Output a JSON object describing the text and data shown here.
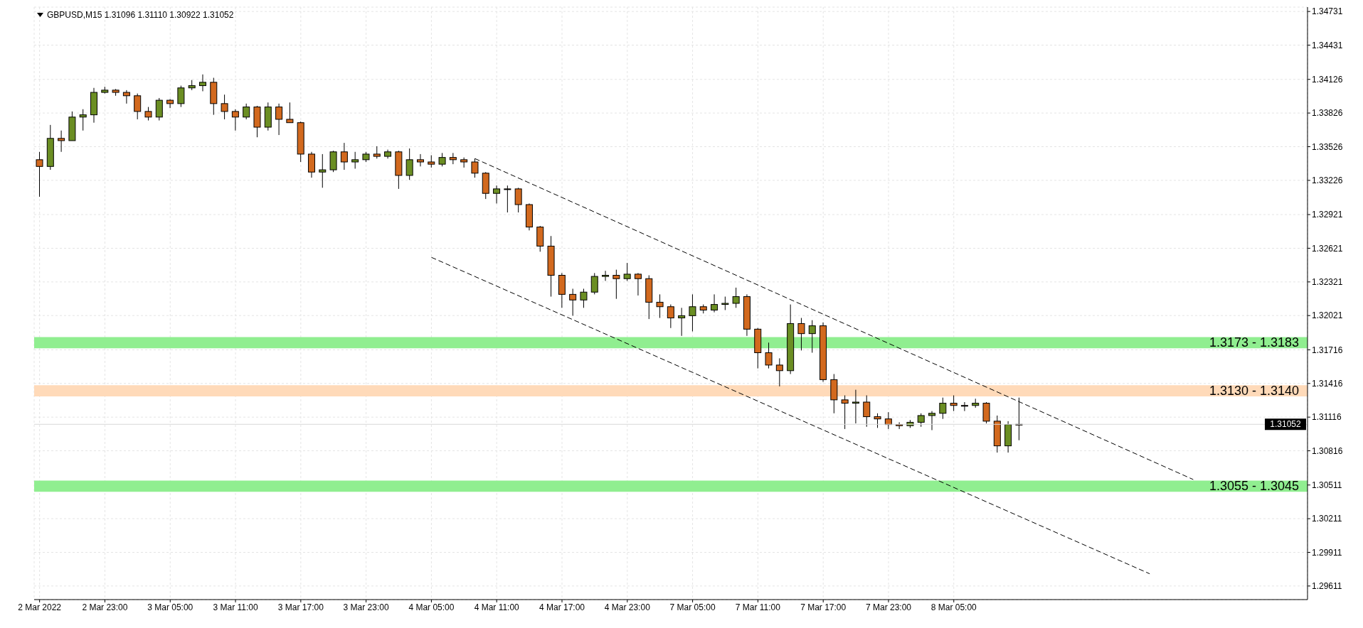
{
  "chart_data": {
    "type": "candlestick",
    "title": "GBPUSD,M15  1.31096 1.31110 1.30922 1.31052",
    "categories": [
      "2 Mar 2022",
      null,
      null,
      null,
      null,
      null,
      "2 Mar 23:00",
      null,
      null,
      null,
      null,
      null,
      "3 Mar 05:00",
      null,
      null,
      null,
      null,
      null,
      "3 Mar 11:00",
      null,
      null,
      null,
      null,
      null,
      "3 Mar 17:00",
      null,
      null,
      null,
      null,
      null,
      "3 Mar 23:00",
      null,
      null,
      null,
      null,
      null,
      "4 Mar 05:00",
      null,
      null,
      null,
      null,
      null,
      "4 Mar 11:00",
      null,
      null,
      null,
      null,
      null,
      "4 Mar 17:00",
      null,
      null,
      null,
      null,
      null,
      "4 Mar 23:00",
      null,
      null,
      null,
      null,
      null,
      "7 Mar 05:00",
      null,
      null,
      null,
      null,
      null,
      "7 Mar 11:00",
      null,
      null,
      null,
      null,
      null,
      "7 Mar 17:00",
      null,
      null,
      null,
      null,
      null,
      "7 Mar 23:00",
      null,
      null,
      null,
      null,
      null,
      "8 Mar 05:00",
      null,
      null,
      null,
      null,
      null,
      null,
      null,
      null,
      null,
      null,
      null,
      null,
      null,
      null,
      null,
      null,
      null,
      null,
      null,
      null,
      null,
      null,
      null,
      null,
      null,
      null,
      null,
      null,
      null,
      null,
      null,
      null
    ],
    "ohlc": [
      [
        1.3341,
        1.3348,
        1.3308,
        1.3335
      ],
      [
        1.3335,
        1.3372,
        1.3332,
        1.336
      ],
      [
        1.336,
        1.3367,
        1.3348,
        1.3358
      ],
      [
        1.3358,
        1.3384,
        1.3358,
        1.3379
      ],
      [
        1.3379,
        1.3386,
        1.3367,
        1.3381
      ],
      [
        1.3381,
        1.3405,
        1.3374,
        1.3401
      ],
      [
        1.3401,
        1.3406,
        1.34,
        1.3403
      ],
      [
        1.3403,
        1.3404,
        1.3398,
        1.3401
      ],
      [
        1.3401,
        1.3403,
        1.3391,
        1.3398
      ],
      [
        1.3398,
        1.34,
        1.3377,
        1.3384
      ],
      [
        1.3384,
        1.3388,
        1.3376,
        1.3379
      ],
      [
        1.3379,
        1.3396,
        1.3376,
        1.3394
      ],
      [
        1.3394,
        1.3395,
        1.3387,
        1.3391
      ],
      [
        1.3391,
        1.3407,
        1.3388,
        1.3405
      ],
      [
        1.3405,
        1.3412,
        1.3403,
        1.3407
      ],
      [
        1.3407,
        1.3417,
        1.3402,
        1.341
      ],
      [
        1.341,
        1.3414,
        1.3381,
        1.3391
      ],
      [
        1.3391,
        1.3399,
        1.3377,
        1.3384
      ],
      [
        1.3384,
        1.3386,
        1.3367,
        1.3379
      ],
      [
        1.3379,
        1.3391,
        1.3377,
        1.3388
      ],
      [
        1.3388,
        1.3389,
        1.3361,
        1.337
      ],
      [
        1.337,
        1.3392,
        1.3367,
        1.3388
      ],
      [
        1.3388,
        1.3391,
        1.3363,
        1.3377
      ],
      [
        1.3377,
        1.3392,
        1.3374,
        1.3374
      ],
      [
        1.3374,
        1.3375,
        1.3339,
        1.3346
      ],
      [
        1.3346,
        1.3348,
        1.3325,
        1.333
      ],
      [
        1.333,
        1.3346,
        1.3316,
        1.3332
      ],
      [
        1.3332,
        1.3349,
        1.333,
        1.3348
      ],
      [
        1.3348,
        1.3356,
        1.3332,
        1.3339
      ],
      [
        1.3339,
        1.3348,
        1.3333,
        1.3341
      ],
      [
        1.3341,
        1.3348,
        1.3339,
        1.3346
      ],
      [
        1.3346,
        1.3353,
        1.3342,
        1.3344
      ],
      [
        1.3344,
        1.335,
        1.3342,
        1.3348
      ],
      [
        1.3348,
        1.3349,
        1.3315,
        1.3327
      ],
      [
        1.3327,
        1.3351,
        1.3323,
        1.3341
      ],
      [
        1.3341,
        1.3346,
        1.3335,
        1.3339
      ],
      [
        1.3339,
        1.3345,
        1.3334,
        1.3337
      ],
      [
        1.3337,
        1.3347,
        1.3335,
        1.3343
      ],
      [
        1.3343,
        1.3347,
        1.3337,
        1.3341
      ],
      [
        1.3341,
        1.3343,
        1.3334,
        1.3339
      ],
      [
        1.3339,
        1.3342,
        1.3325,
        1.3329
      ],
      [
        1.3329,
        1.333,
        1.3306,
        1.3311
      ],
      [
        1.3311,
        1.3318,
        1.3302,
        1.3315
      ],
      [
        1.3315,
        1.3318,
        1.3294,
        1.3315
      ],
      [
        1.3315,
        1.3316,
        1.3294,
        1.3301
      ],
      [
        1.3301,
        1.3302,
        1.3278,
        1.3281
      ],
      [
        1.3281,
        1.3282,
        1.3259,
        1.3264
      ],
      [
        1.3264,
        1.3273,
        1.3219,
        1.3238
      ],
      [
        1.3238,
        1.324,
        1.3209,
        1.3221
      ],
      [
        1.3221,
        1.3226,
        1.3202,
        1.3216
      ],
      [
        1.3216,
        1.3226,
        1.3209,
        1.3223
      ],
      [
        1.3223,
        1.324,
        1.3221,
        1.3237
      ],
      [
        1.3237,
        1.3242,
        1.3233,
        1.3238
      ],
      [
        1.3238,
        1.3243,
        1.3217,
        1.3235
      ],
      [
        1.3235,
        1.3249,
        1.3233,
        1.3239
      ],
      [
        1.3239,
        1.324,
        1.322,
        1.3235
      ],
      [
        1.3235,
        1.3238,
        1.3199,
        1.3214
      ],
      [
        1.3214,
        1.3221,
        1.32,
        1.321
      ],
      [
        1.321,
        1.3212,
        1.3191,
        1.32
      ],
      [
        1.32,
        1.3209,
        1.3184,
        1.3202
      ],
      [
        1.3202,
        1.3221,
        1.3188,
        1.321
      ],
      [
        1.321,
        1.3212,
        1.3204,
        1.3207
      ],
      [
        1.3207,
        1.3221,
        1.3205,
        1.3212
      ],
      [
        1.3212,
        1.3219,
        1.3207,
        1.3213
      ],
      [
        1.3213,
        1.3227,
        1.3209,
        1.3219
      ],
      [
        1.3219,
        1.3221,
        1.3184,
        1.319
      ],
      [
        1.319,
        1.3191,
        1.3155,
        1.3169
      ],
      [
        1.3169,
        1.3178,
        1.3155,
        1.3158
      ],
      [
        1.3158,
        1.3164,
        1.3139,
        1.3153
      ],
      [
        1.3153,
        1.3212,
        1.315,
        1.3195
      ],
      [
        1.3195,
        1.32,
        1.3171,
        1.3186
      ],
      [
        1.3186,
        1.3198,
        1.3169,
        1.3193
      ],
      [
        1.3193,
        1.3196,
        1.3143,
        1.3145
      ],
      [
        1.3145,
        1.315,
        1.3115,
        1.3127
      ],
      [
        1.3127,
        1.3131,
        1.3101,
        1.3124
      ],
      [
        1.3124,
        1.3136,
        1.3106,
        1.3125
      ],
      [
        1.3125,
        1.3131,
        1.3103,
        1.3112
      ],
      [
        1.3112,
        1.3115,
        1.3102,
        1.311
      ],
      [
        1.311,
        1.3116,
        1.3101,
        1.3105
      ],
      [
        1.3105,
        1.3107,
        1.3101,
        1.3104
      ],
      [
        1.3104,
        1.3109,
        1.3102,
        1.3107
      ],
      [
        1.3107,
        1.3115,
        1.3103,
        1.3113
      ],
      [
        1.3113,
        1.3117,
        1.31,
        1.3115
      ],
      [
        1.3115,
        1.3129,
        1.311,
        1.3124
      ],
      [
        1.3124,
        1.3131,
        1.3117,
        1.3122
      ],
      [
        1.3122,
        1.3125,
        1.3117,
        1.3122
      ],
      [
        1.3122,
        1.3128,
        1.312,
        1.3124
      ],
      [
        1.3124,
        1.3125,
        1.3106,
        1.3108
      ],
      [
        1.3108,
        1.3113,
        1.308,
        1.3086
      ],
      [
        1.3086,
        1.3108,
        1.308,
        1.3105
      ],
      [
        1.3105,
        1.3129,
        1.3091,
        1.31052
      ],
      null,
      null,
      null,
      null,
      null,
      null,
      null,
      null,
      null,
      null,
      null,
      null,
      null,
      null,
      null,
      null,
      null,
      null,
      null,
      null,
      null,
      null,
      null,
      null,
      null,
      null
    ],
    "colors": [
      "#d2691e",
      "#6b8e23",
      "#d2691e",
      "#6b8e23",
      "#6b8e23",
      "#6b8e23",
      "#6b8e23",
      "#d2691e",
      "#d2691e",
      "#d2691e",
      "#d2691e",
      "#6b8e23",
      "#d2691e",
      "#6b8e23",
      "#6b8e23",
      "#6b8e23",
      "#d2691e",
      "#d2691e",
      "#d2691e",
      "#6b8e23",
      "#d2691e",
      "#6b8e23",
      "#d2691e",
      "#d2691e",
      "#d2691e",
      "#d2691e",
      "#6b8e23",
      "#6b8e23",
      "#d2691e",
      "#6b8e23",
      "#6b8e23",
      "#d2691e",
      "#6b8e23",
      "#d2691e",
      "#6b8e23",
      "#d2691e",
      "#d2691e",
      "#6b8e23",
      "#d2691e",
      "#d2691e",
      "#d2691e",
      "#d2691e",
      "#6b8e23",
      "#d2691e",
      "#d2691e",
      "#d2691e",
      "#d2691e",
      "#d2691e",
      "#d2691e",
      "#d2691e",
      "#6b8e23",
      "#6b8e23",
      "#6b8e23",
      "#d2691e",
      "#6b8e23",
      "#d2691e",
      "#d2691e",
      "#d2691e",
      "#d2691e",
      "#6b8e23",
      "#6b8e23",
      "#d2691e",
      "#6b8e23",
      "#6b8e23",
      "#6b8e23",
      "#d2691e",
      "#d2691e",
      "#d2691e",
      "#d2691e",
      "#6b8e23",
      "#d2691e",
      "#6b8e23",
      "#d2691e",
      "#d2691e",
      "#d2691e",
      "#6b8e23",
      "#d2691e",
      "#d2691e",
      "#d2691e",
      "#d2691e",
      "#6b8e23",
      "#6b8e23",
      "#6b8e23",
      "#6b8e23",
      "#d2691e",
      "#d2691e",
      "#6b8e23",
      "#d2691e",
      "#d2691e",
      "#6b8e23",
      "#d2691e",
      null,
      null,
      null,
      null,
      null,
      null,
      null,
      null,
      null,
      null,
      null,
      null,
      null,
      null,
      null,
      null,
      null,
      null,
      null,
      null,
      null,
      null,
      null,
      null,
      null,
      null
    ],
    "series": [
      {
        "type": "line",
        "values": [
          null,
          null,
          null,
          null,
          null,
          null,
          null,
          null,
          null,
          null,
          null,
          null,
          null,
          null,
          null,
          null,
          null,
          null,
          null,
          null,
          null,
          null,
          null,
          null,
          null,
          null,
          null,
          null,
          null,
          null,
          null,
          null,
          null,
          null,
          null,
          null,
          null,
          null,
          null,
          null,
          1.3342,
          null,
          null,
          null,
          null,
          null,
          null,
          null,
          null,
          null,
          null,
          null,
          null,
          null,
          null,
          null,
          null,
          null,
          null,
          null,
          null,
          null,
          null,
          null,
          null,
          null,
          null,
          null,
          null,
          null,
          null,
          null,
          null,
          null,
          null,
          null,
          null,
          null,
          null,
          null,
          null,
          null,
          null,
          null,
          null,
          null,
          null,
          null,
          null,
          null,
          null,
          null,
          null,
          null,
          null,
          null,
          null,
          null,
          null,
          null,
          null,
          null,
          null,
          null,
          null,
          null,
          1.3056,
          null,
          null,
          null,
          null,
          null,
          null,
          null,
          null,
          null,
          null
        ],
        "color": "#000000",
        "line_style": "dashed"
      },
      {
        "type": "line",
        "values": [
          null,
          null,
          null,
          null,
          null,
          null,
          null,
          null,
          null,
          null,
          null,
          null,
          null,
          null,
          null,
          null,
          null,
          null,
          null,
          null,
          null,
          null,
          null,
          null,
          null,
          null,
          null,
          null,
          null,
          null,
          null,
          null,
          null,
          null,
          null,
          null,
          1.3254,
          null,
          null,
          null,
          null,
          null,
          null,
          null,
          null,
          null,
          null,
          null,
          null,
          null,
          null,
          null,
          null,
          null,
          null,
          null,
          null,
          null,
          null,
          null,
          null,
          null,
          null,
          null,
          null,
          null,
          null,
          null,
          null,
          null,
          null,
          null,
          null,
          null,
          null,
          null,
          null,
          null,
          null,
          null,
          null,
          null,
          null,
          null,
          null,
          null,
          null,
          null,
          null,
          null,
          null,
          null,
          null,
          null,
          null,
          null,
          null,
          null,
          null,
          null,
          null,
          null,
          1.2972,
          null,
          null,
          null,
          null,
          null,
          null,
          null,
          null,
          null,
          null,
          null,
          null,
          null,
          null
        ],
        "color": "#000000",
        "line_style": "dashed"
      }
    ],
    "ylim": [
      1.2949,
      1.3477
    ],
    "yticks": [
      1.34731,
      1.34431,
      1.34126,
      1.33826,
      1.33526,
      1.33226,
      1.32921,
      1.32621,
      1.32321,
      1.32021,
      1.31716,
      1.31416,
      1.31116,
      1.30816,
      1.30511,
      1.30211,
      1.29911,
      1.29611
    ],
    "grid": true,
    "ref_lines": [
      {
        "axis": "y",
        "value": 1.31052,
        "label": "1.31052",
        "color": "#d9d9d9"
      }
    ],
    "bands": [
      {
        "axis": "y",
        "from": 1.3173,
        "to": 1.3183,
        "label": "1.3173 - 1.3183",
        "color": "#90ee90"
      },
      {
        "axis": "y",
        "from": 1.313,
        "to": 1.314,
        "label": "1.3130 - 1.3140",
        "color": "#ffdab9"
      },
      {
        "axis": "y",
        "from": 1.3045,
        "to": 1.3055,
        "label": "1.3055 - 1.3045",
        "color": "#90ee90"
      }
    ]
  }
}
